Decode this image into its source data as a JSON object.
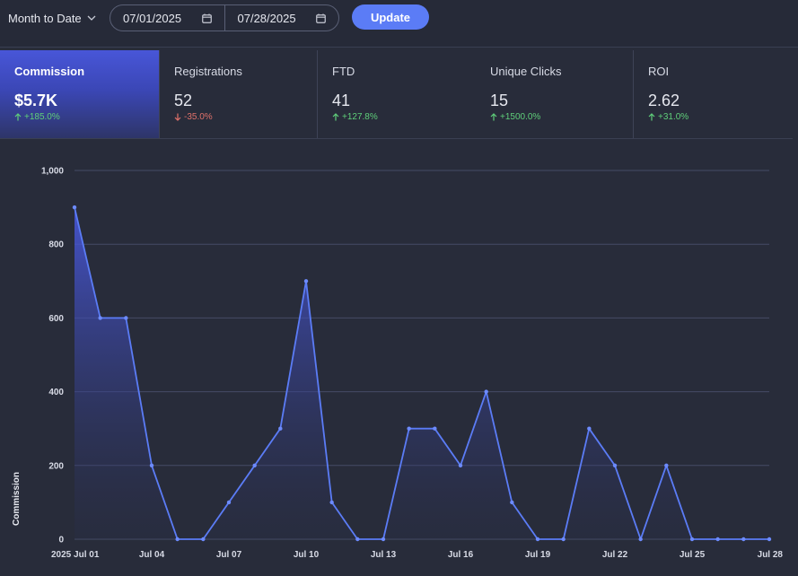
{
  "toolbar": {
    "range_label": "Month to Date",
    "start_date": "07/01/2025",
    "end_date": "07/28/2025",
    "update_label": "Update"
  },
  "colors": {
    "accent": "#5b7cf6",
    "line": "#5b7cf6",
    "positive": "#5fcf7a",
    "negative": "#e0716a"
  },
  "tabs": [
    {
      "label": "Commission",
      "value": "$5.7K",
      "delta": "+185.0%",
      "direction": "up",
      "active": true
    },
    {
      "label": "Registrations",
      "value": "52",
      "delta": "-35.0%",
      "direction": "down",
      "active": false
    },
    {
      "label": "FTD",
      "value": "41",
      "delta": "+127.8%",
      "direction": "up",
      "active": false
    },
    {
      "label": "Unique Clicks",
      "value": "15",
      "delta": "+1500.0%",
      "direction": "up",
      "active": false
    },
    {
      "label": "ROI",
      "value": "2.62",
      "delta": "+31.0%",
      "direction": "up",
      "active": false
    }
  ],
  "chart_data": {
    "type": "area",
    "title": "",
    "xlabel": "",
    "ylabel": "Commission",
    "ylim": [
      0,
      1000
    ],
    "yticks": [
      0,
      200,
      400,
      600,
      800,
      1000
    ],
    "ytick_labels": [
      "0",
      "200",
      "400",
      "600",
      "800",
      "1,000"
    ],
    "xtick_labels": [
      "2025 Jul 01",
      "Jul 04",
      "Jul 07",
      "Jul 10",
      "Jul 13",
      "Jul 16",
      "Jul 19",
      "Jul 22",
      "Jul 25",
      "Jul 28"
    ],
    "xtick_days": [
      1,
      4,
      7,
      10,
      13,
      16,
      19,
      22,
      25,
      28
    ],
    "grid": true,
    "series": [
      {
        "name": "Commission",
        "x": [
          1,
          2,
          3,
          4,
          5,
          6,
          7,
          8,
          9,
          10,
          11,
          12,
          13,
          14,
          15,
          16,
          17,
          18,
          19,
          20,
          21,
          22,
          23,
          24,
          25,
          26,
          27,
          28
        ],
        "values": [
          900,
          600,
          600,
          200,
          0,
          0,
          100,
          200,
          300,
          700,
          100,
          0,
          0,
          300,
          300,
          200,
          400,
          100,
          0,
          0,
          300,
          200,
          0,
          200,
          0,
          0,
          0,
          0
        ]
      }
    ]
  }
}
